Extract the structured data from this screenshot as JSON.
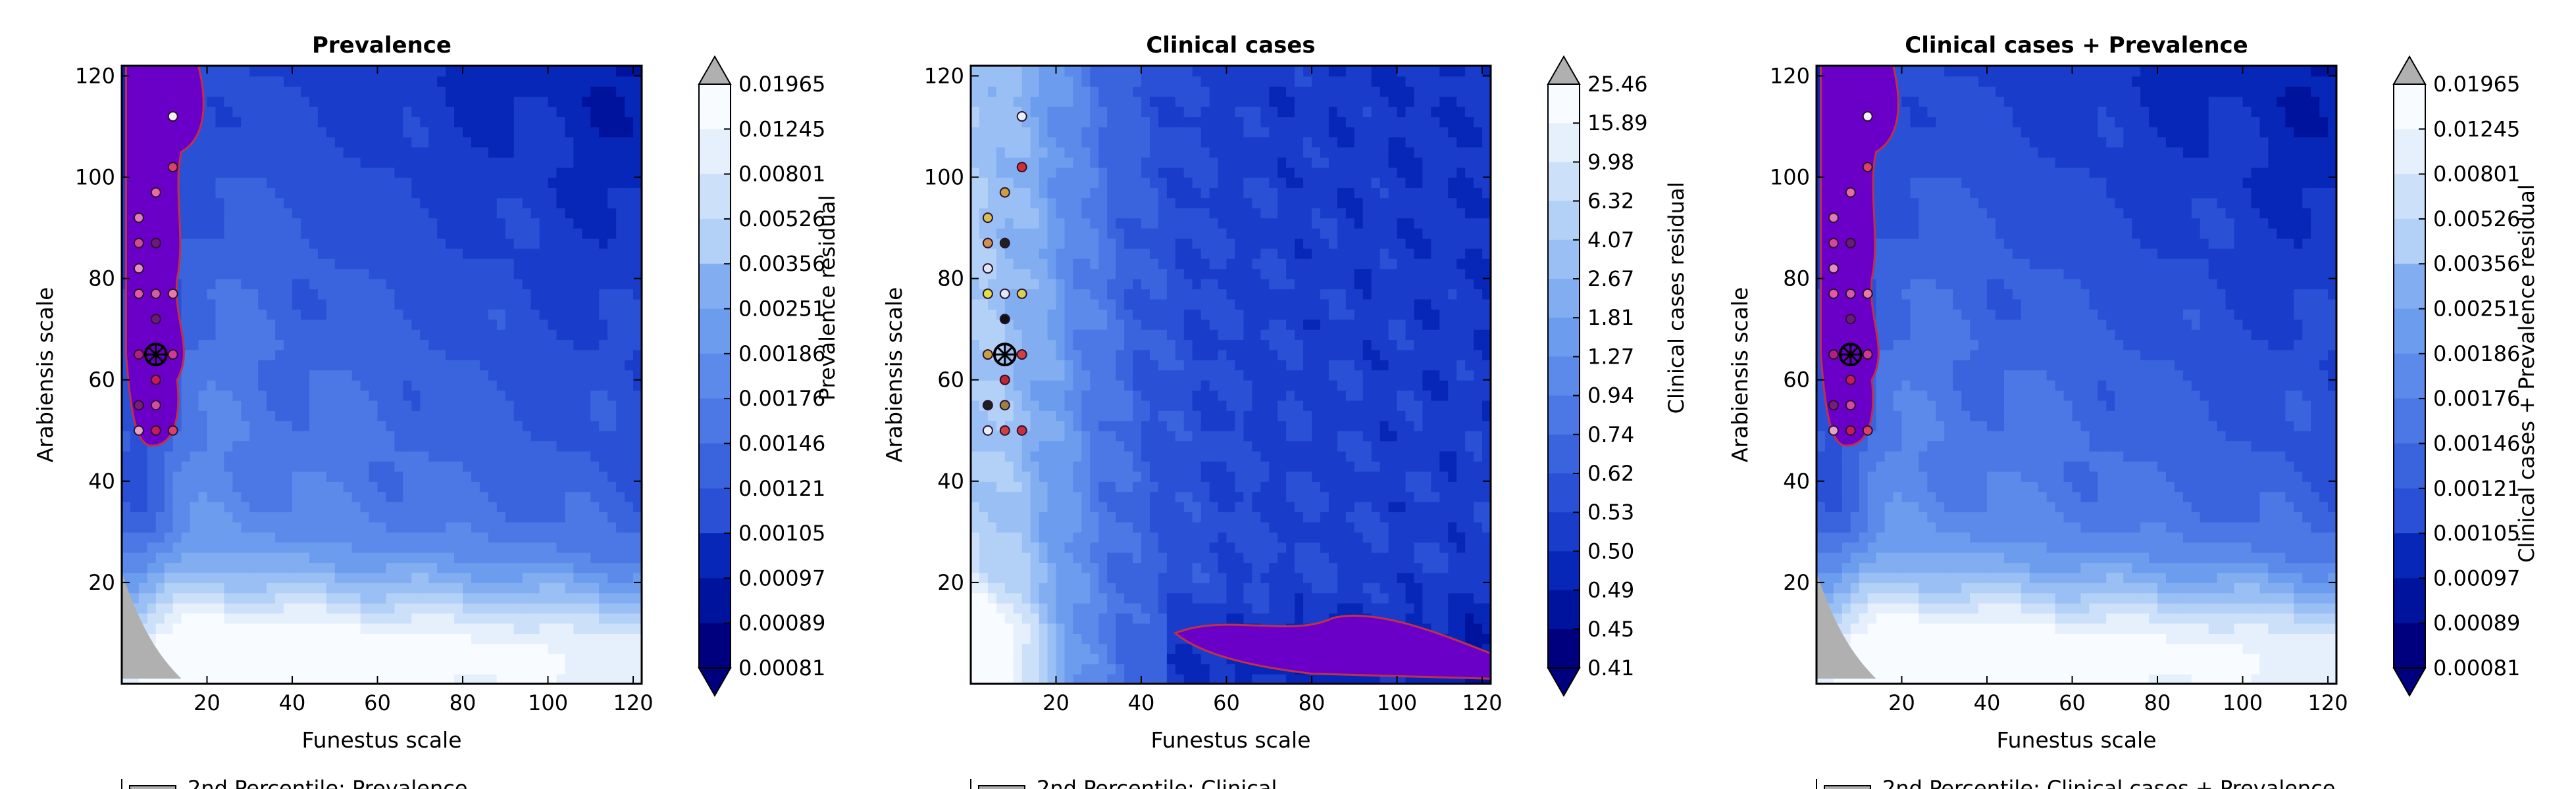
{
  "colors": {
    "significant_region": "#6a00c8",
    "significant_edge": "#c0304a",
    "chosen_marker": "#000000",
    "dim_region": "#b0b0b0"
  },
  "chart_data": [
    {
      "type": "heatmap",
      "title": "Prevalence",
      "xlabel": "Funestus scale",
      "ylabel": "Arabiensis scale",
      "xlim": [
        0,
        122
      ],
      "ylim": [
        0,
        122
      ],
      "xticks": [
        20,
        40,
        60,
        80,
        100,
        120
      ],
      "yticks": [
        20,
        40,
        60,
        80,
        100,
        120
      ],
      "colorbar_label": "Prevalence residual",
      "colorbar_ticks": [
        "0.01965",
        "0.01245",
        "0.00801",
        "0.00526",
        "0.00356",
        "0.00251",
        "0.00186",
        "0.00176",
        "0.00146",
        "0.00121",
        "0.00105",
        "0.00097",
        "0.00089",
        "0.00081"
      ],
      "field_model": "prevalence",
      "legend_partial": "2nd Percentile: Prevalence",
      "best_fit": {
        "x": 8,
        "y": 65
      },
      "points": [
        {
          "x": 12,
          "y": 112,
          "c": "#f6eef6"
        },
        {
          "x": 12,
          "y": 102,
          "c": "#d9406a"
        },
        {
          "x": 8,
          "y": 97,
          "c": "#e96aa2"
        },
        {
          "x": 4,
          "y": 92,
          "c": "#e07ab8"
        },
        {
          "x": 4,
          "y": 87,
          "c": "#d6479a"
        },
        {
          "x": 8,
          "y": 87,
          "c": "#6b1a7a"
        },
        {
          "x": 4,
          "y": 82,
          "c": "#e38ec4"
        },
        {
          "x": 4,
          "y": 77,
          "c": "#e05aa8"
        },
        {
          "x": 8,
          "y": 77,
          "c": "#d25aa6"
        },
        {
          "x": 12,
          "y": 77,
          "c": "#e87aa8"
        },
        {
          "x": 8,
          "y": 72,
          "c": "#6b1a7a"
        },
        {
          "x": 4,
          "y": 65,
          "c": "#b02080"
        },
        {
          "x": 12,
          "y": 65,
          "c": "#d13a90"
        },
        {
          "x": 8,
          "y": 60,
          "c": "#c81a5a"
        },
        {
          "x": 4,
          "y": 55,
          "c": "#7a1b80"
        },
        {
          "x": 8,
          "y": 55,
          "c": "#d44aa0"
        },
        {
          "x": 4,
          "y": 50,
          "c": "#e3a0c8"
        },
        {
          "x": 8,
          "y": 50,
          "c": "#c81a5a"
        },
        {
          "x": 12,
          "y": 50,
          "c": "#d9406a"
        }
      ]
    },
    {
      "type": "heatmap",
      "title": "Clinical cases",
      "xlabel": "Funestus scale",
      "ylabel": "Arabiensis scale",
      "xlim": [
        0,
        122
      ],
      "ylim": [
        0,
        122
      ],
      "xticks": [
        20,
        40,
        60,
        80,
        100,
        120
      ],
      "yticks": [
        20,
        40,
        60,
        80,
        100,
        120
      ],
      "colorbar_label": "Clinical cases residual",
      "colorbar_ticks": [
        "25.46",
        "15.89",
        "9.98",
        "6.32",
        "4.07",
        "2.67",
        "1.81",
        "1.27",
        "0.94",
        "0.74",
        "0.62",
        "0.53",
        "0.50",
        "0.49",
        "0.45",
        "0.41"
      ],
      "field_model": "clinical",
      "legend_partial": "2nd Percentile: Clinical",
      "best_fit": {
        "x": 8,
        "y": 65
      },
      "points": [
        {
          "x": 12,
          "y": 112,
          "c": "#e8f0f8"
        },
        {
          "x": 12,
          "y": 102,
          "c": "#d03030"
        },
        {
          "x": 8,
          "y": 97,
          "c": "#c8a040"
        },
        {
          "x": 4,
          "y": 92,
          "c": "#d8c050"
        },
        {
          "x": 4,
          "y": 87,
          "c": "#d09050"
        },
        {
          "x": 8,
          "y": 87,
          "c": "#202020"
        },
        {
          "x": 4,
          "y": 82,
          "c": "#dde8f4"
        },
        {
          "x": 4,
          "y": 77,
          "c": "#e0e040"
        },
        {
          "x": 8,
          "y": 77,
          "c": "#dde8f4"
        },
        {
          "x": 12,
          "y": 77,
          "c": "#d8d050"
        },
        {
          "x": 8,
          "y": 72,
          "c": "#101010"
        },
        {
          "x": 4,
          "y": 65,
          "c": "#c8a040"
        },
        {
          "x": 12,
          "y": 65,
          "c": "#d04040"
        },
        {
          "x": 8,
          "y": 60,
          "c": "#c02830"
        },
        {
          "x": 4,
          "y": 55,
          "c": "#202020"
        },
        {
          "x": 8,
          "y": 55,
          "c": "#a08040"
        },
        {
          "x": 4,
          "y": 50,
          "c": "#e8eef8"
        },
        {
          "x": 8,
          "y": 50,
          "c": "#d04040"
        },
        {
          "x": 12,
          "y": 50,
          "c": "#c83040"
        }
      ]
    },
    {
      "type": "heatmap",
      "title": "Clinical cases + Prevalence",
      "xlabel": "Funestus scale",
      "ylabel": "Arabiensis scale",
      "xlim": [
        0,
        122
      ],
      "ylim": [
        0,
        122
      ],
      "xticks": [
        20,
        40,
        60,
        80,
        100,
        120
      ],
      "yticks": [
        20,
        40,
        60,
        80,
        100,
        120
      ],
      "colorbar_label": "Clinical cases + Prevalence residual",
      "colorbar_ticks": [
        "0.01965",
        "0.01245",
        "0.00801",
        "0.00526",
        "0.00356",
        "0.00251",
        "0.00186",
        "0.00176",
        "0.00146",
        "0.00121",
        "0.00105",
        "0.00097",
        "0.00089",
        "0.00081"
      ],
      "field_model": "prevalence",
      "legend_partial": "2nd Percentile: Clinical cases + Prevalence",
      "best_fit": {
        "x": 8,
        "y": 65
      },
      "points": [
        {
          "x": 12,
          "y": 112,
          "c": "#f6eef6"
        },
        {
          "x": 12,
          "y": 102,
          "c": "#d9406a"
        },
        {
          "x": 8,
          "y": 97,
          "c": "#e96aa2"
        },
        {
          "x": 4,
          "y": 92,
          "c": "#e07ab8"
        },
        {
          "x": 4,
          "y": 87,
          "c": "#d6479a"
        },
        {
          "x": 8,
          "y": 87,
          "c": "#6b1a7a"
        },
        {
          "x": 4,
          "y": 82,
          "c": "#e38ec4"
        },
        {
          "x": 4,
          "y": 77,
          "c": "#e05aa8"
        },
        {
          "x": 8,
          "y": 77,
          "c": "#d25aa6"
        },
        {
          "x": 12,
          "y": 77,
          "c": "#e87aa8"
        },
        {
          "x": 8,
          "y": 72,
          "c": "#6b1a7a"
        },
        {
          "x": 4,
          "y": 65,
          "c": "#b02080"
        },
        {
          "x": 12,
          "y": 65,
          "c": "#d13a90"
        },
        {
          "x": 8,
          "y": 60,
          "c": "#c81a5a"
        },
        {
          "x": 4,
          "y": 55,
          "c": "#7a1b80"
        },
        {
          "x": 8,
          "y": 55,
          "c": "#d44aa0"
        },
        {
          "x": 4,
          "y": 50,
          "c": "#e3a0c8"
        },
        {
          "x": 8,
          "y": 50,
          "c": "#c81a5a"
        },
        {
          "x": 12,
          "y": 50,
          "c": "#d9406a"
        }
      ]
    }
  ]
}
